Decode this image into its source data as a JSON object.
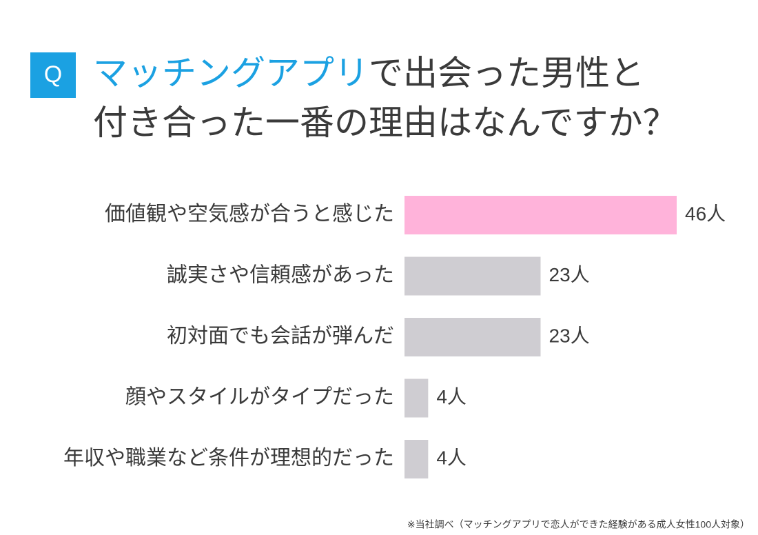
{
  "chart_data": {
    "type": "bar",
    "orientation": "horizontal",
    "badge": "Q",
    "title_parts": [
      "マッチングアプリ",
      "で出会った男性と",
      "付き合った一番の理由はなんですか？"
    ],
    "title_colors": [
      "#1ba1e2",
      "#3a3a3a",
      "#3a3a3a"
    ],
    "categories": [
      "価値観や空気感が合うと感じた",
      "誠実さや信頼感があった",
      "初対面でも会話が弾んだ",
      "顔やスタイルがタイプだった",
      "年収や職業など条件が理想的だった"
    ],
    "values": [
      46,
      23,
      23,
      4,
      4
    ],
    "value_labels": [
      "46人",
      "23人",
      "23人",
      "4人",
      "4人"
    ],
    "colors": [
      "#ffb3da",
      "#cfcdd2",
      "#cfcdd2",
      "#cfcdd2",
      "#cfcdd2"
    ],
    "footnote": "※当社調べ（マッチングアプリで恋人ができた経験がある成人女性100人対象）"
  }
}
